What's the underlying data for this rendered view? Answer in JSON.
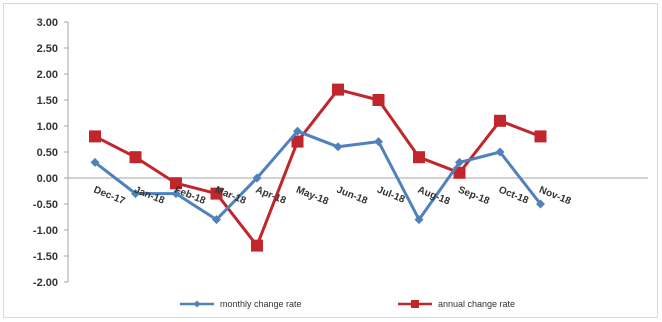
{
  "chart_data": {
    "type": "line",
    "categories": [
      "Dec-17",
      "Jan-18",
      "Feb-18",
      "Mar-18",
      "Apr-18",
      "May-18",
      "Jun-18",
      "Jul-18",
      "Aug-18",
      "Sep-18",
      "Oct-18",
      "Nov-18"
    ],
    "series": [
      {
        "name": "monthly change rate",
        "color": "#4f81bd",
        "marker": "diamond",
        "values": [
          0.3,
          -0.3,
          -0.3,
          -0.8,
          0.0,
          0.9,
          0.6,
          0.7,
          -0.8,
          0.3,
          0.5,
          -0.5
        ]
      },
      {
        "name": "annual change rate",
        "color": "#c0262c",
        "marker": "square",
        "values": [
          0.8,
          0.4,
          -0.1,
          -0.3,
          -1.3,
          0.7,
          1.7,
          1.5,
          0.4,
          0.1,
          1.1,
          0.8
        ]
      }
    ],
    "yticks": [
      "3.00",
      "2.50",
      "2.00",
      "1.50",
      "1.00",
      "0.50",
      "0.00",
      "-0.50",
      "-1.00",
      "-1.50",
      "-2.00"
    ],
    "ylim": [
      -2,
      3
    ],
    "grid": false,
    "legend_position": "bottom",
    "title": "",
    "xlabel": "",
    "ylabel": ""
  }
}
